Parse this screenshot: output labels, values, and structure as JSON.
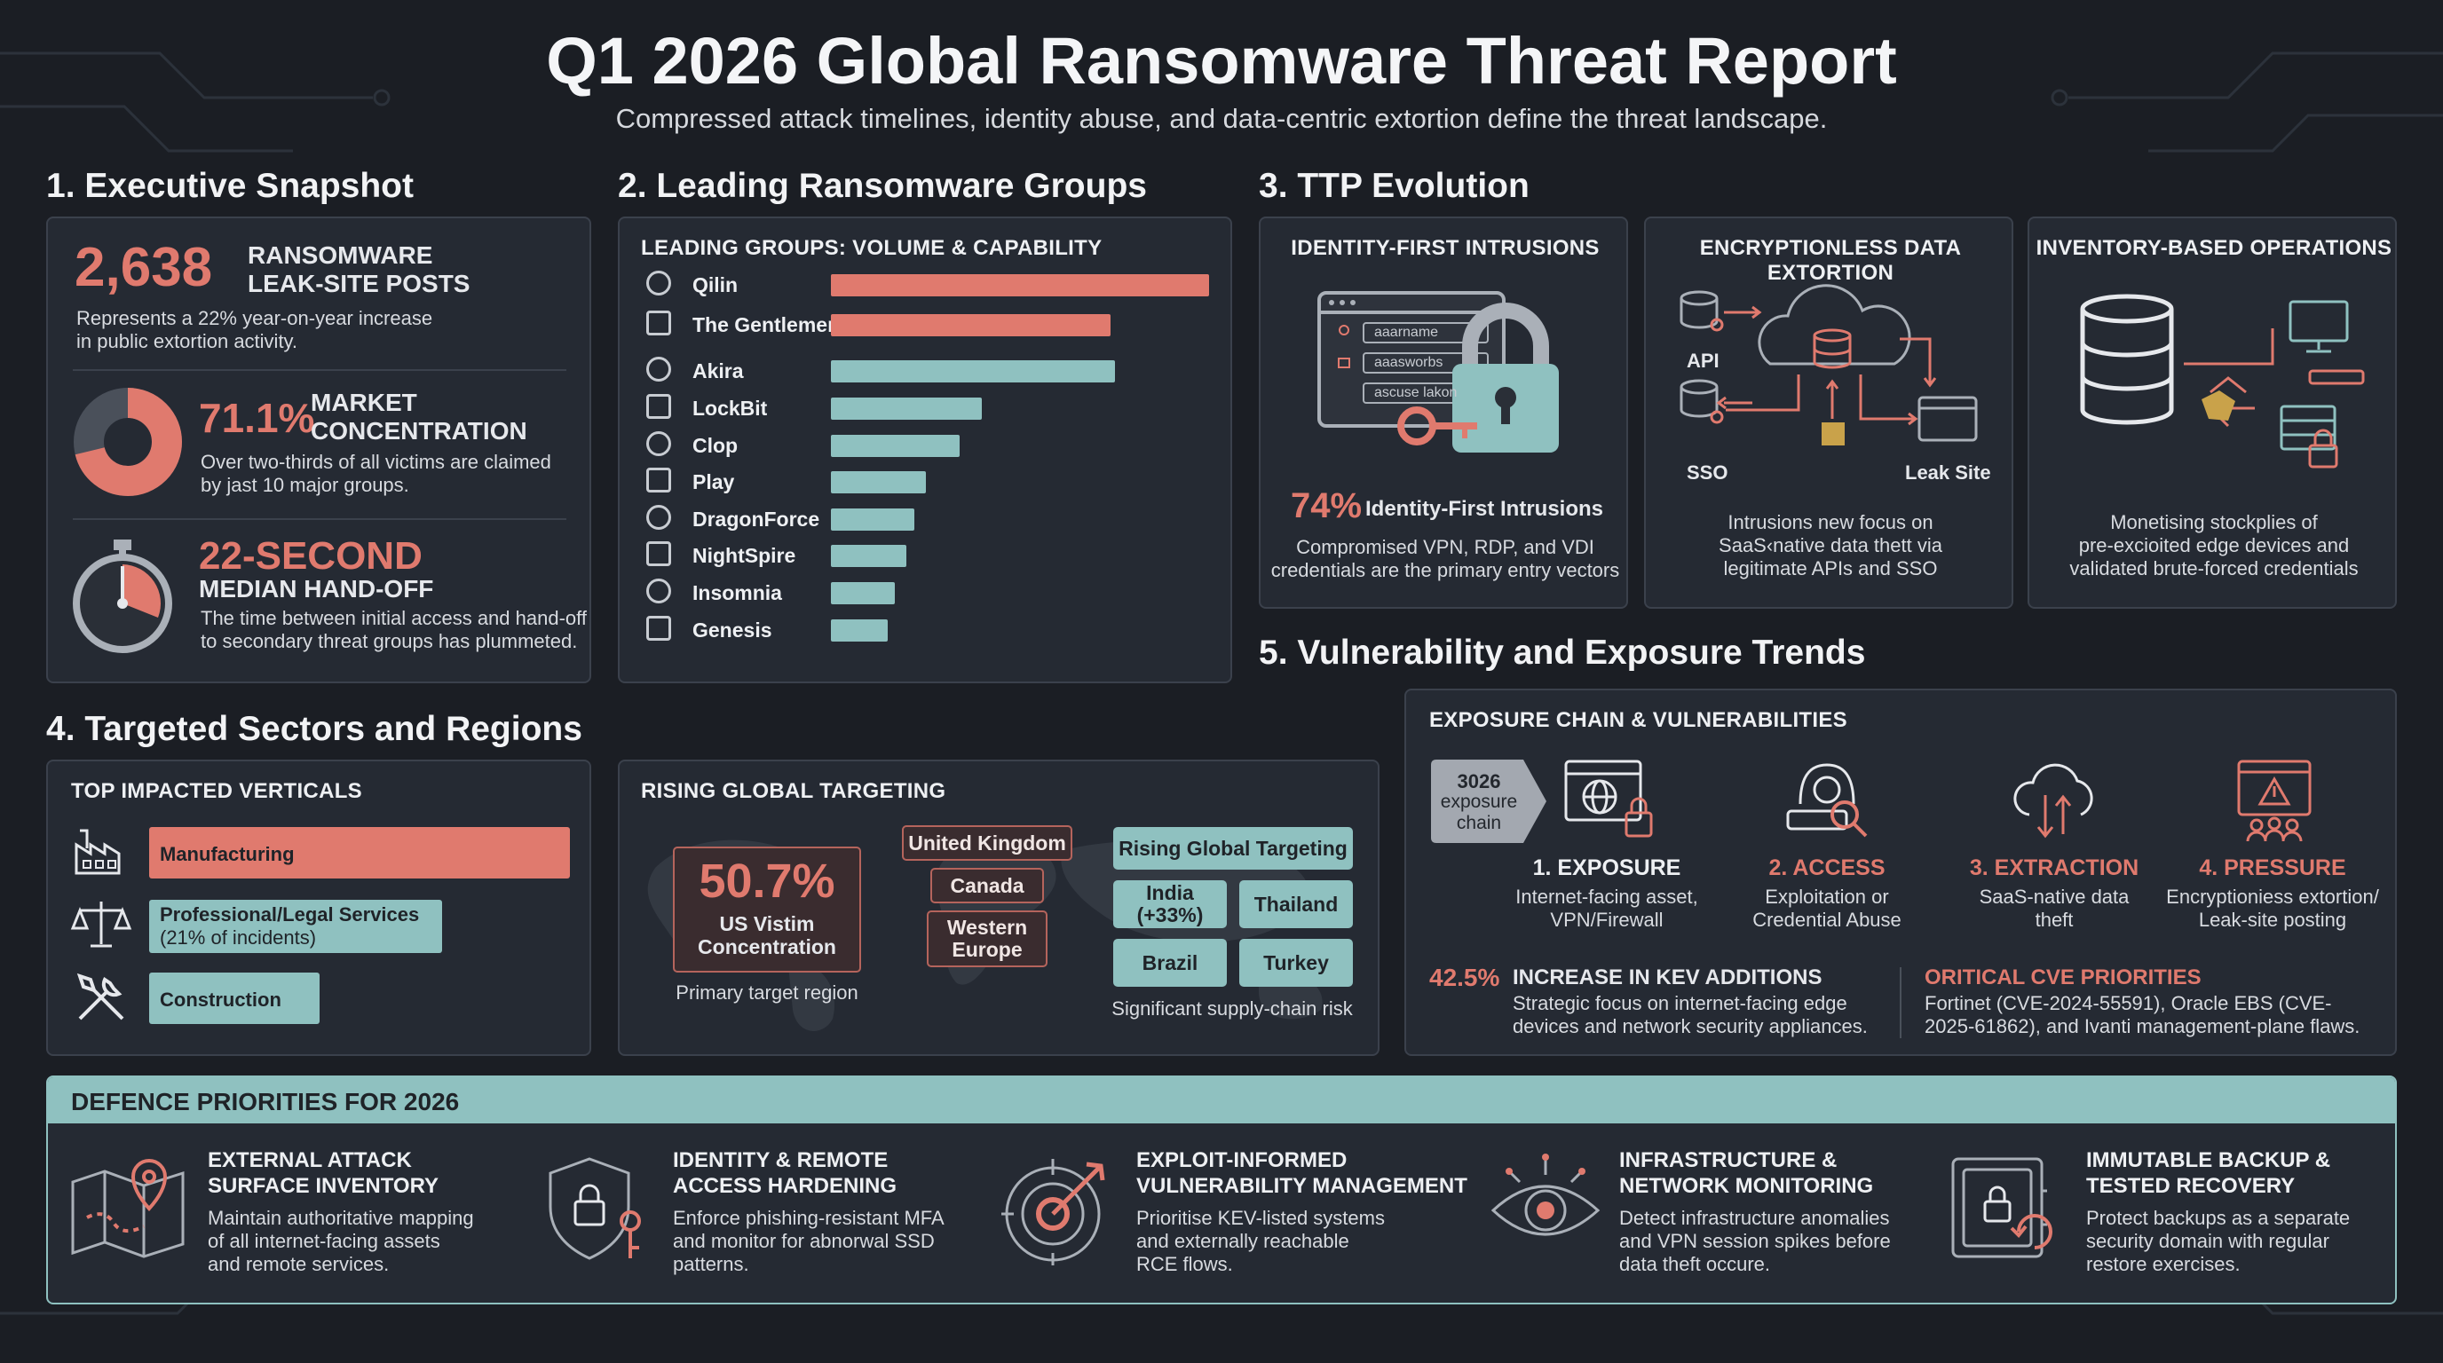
{
  "title": "Q1 2026 Global Ransomware Threat Report",
  "subtitle": "Compressed attack timelines, identity abuse, and data-centric extortion define the threat landscape.",
  "colors": {
    "accent_red": "#e07a6e",
    "accent_teal": "#8fc1c0",
    "background": "#1b1e24",
    "panel": "#252a33"
  },
  "snapshot": {
    "heading": "1. Executive Snapshot",
    "posts_value": "2,638",
    "posts_label_1": "RANSOMWARE",
    "posts_label_2": "LEAK-SITE POSTS",
    "posts_desc_1": "Represents a 22% year-on-year increase",
    "posts_desc_2": "in public extortion activity.",
    "market_value": "71.1%",
    "market_fraction": 0.711,
    "market_label_1": "MARKET",
    "market_label_2": "CONCENTRATION",
    "market_desc_1": "Over two-thirds of all victims are claimed",
    "market_desc_2": "by jast 10 major groups.",
    "handoff_value": "22-SECOND",
    "handoff_label": "MEDIAN HAND-OFF",
    "handoff_desc_1": "The time between initial access and hand-off",
    "handoff_desc_2": "to secondary threat groups has plummeted."
  },
  "groups": {
    "heading": "2. Leading Ransomware Groups",
    "caption": "LEADING GROUPS: VOLUME & CAPABILITY",
    "items": [
      {
        "name": "Qilin",
        "value": 100,
        "color": "#e07a6e",
        "icon": "qilin-icon"
      },
      {
        "name": "The Gentlemen",
        "value": 74,
        "color": "#e07a6e",
        "icon": "gentlemen-icon"
      },
      {
        "name": "Akira",
        "value": 75,
        "color": "#8fc1c0",
        "icon": "akira-icon"
      },
      {
        "name": "LockBit",
        "value": 40,
        "color": "#8fc1c0",
        "icon": "lockbit-icon"
      },
      {
        "name": "Clop",
        "value": 34,
        "color": "#8fc1c0",
        "icon": "clop-icon"
      },
      {
        "name": "Play",
        "value": 25,
        "color": "#8fc1c0",
        "icon": "play-icon"
      },
      {
        "name": "DragonForce",
        "value": 22,
        "color": "#8fc1c0",
        "icon": "dragonforce-icon"
      },
      {
        "name": "NightSpire",
        "value": 20,
        "color": "#8fc1c0",
        "icon": "nightspire-icon"
      },
      {
        "name": "Insomnia",
        "value": 17,
        "color": "#8fc1c0",
        "icon": "insomnia-icon"
      },
      {
        "name": "Genesis",
        "value": 15,
        "color": "#8fc1c0",
        "icon": "genesis-icon"
      }
    ]
  },
  "ttp": {
    "heading": "3. TTP Evolution",
    "identity": {
      "caption": "IDENTITY-FIRST INTRUSIONS",
      "field_1": "aaarname",
      "field_2": "aaasworbs",
      "field_3": "ascuse lakon",
      "value": "74%",
      "label": "Identity-First Intrusions",
      "desc_1": "Compromised VPN, RDP, and VDI",
      "desc_2": "credentials are the primary entry vectors"
    },
    "extortion": {
      "caption": "ENCRYPTIONLESS DATA EXTORTION",
      "api_label": "API",
      "sso_label": "SSO",
      "leak_label": "Leak Site",
      "desc_1": "Intrusions new focus on",
      "desc_2": "SaaS‹native data thett via",
      "desc_3": "legitimate APIs and SSO"
    },
    "inventory": {
      "caption": "INVENTORY-BASED OPERATIONS",
      "desc_1": "Monetising stockplies of",
      "desc_2": "pre-excioited edge devices and",
      "desc_3": "validated brute-forced credentials"
    }
  },
  "sectors": {
    "heading": "4. Targeted Sectors and Regions",
    "verticals_caption": "TOP IMPACTED VERTICALS",
    "verticals": [
      {
        "label": "Manufacturing",
        "color": "#e07a6e",
        "icon": "factory-icon"
      },
      {
        "label": "Professional/Legal Services",
        "sub": "(21% of incidents)",
        "color": "#8fc1c0",
        "icon": "scales-icon"
      },
      {
        "label": "Construction",
        "color": "#8fc1c0",
        "icon": "tools-icon"
      }
    ],
    "regions_caption": "RISING GLOBAL TARGETING",
    "us_value": "50.7%",
    "us_label_1": "US Vistim",
    "us_label_2": "Concentration",
    "us_note": "Primary target region",
    "region_uk": "United Kingdom",
    "region_canada": "Canada",
    "region_we_1": "Western",
    "region_we_2": "Europe",
    "rising_header": "Rising Global Targeting",
    "rising_india_1": "India",
    "rising_india_2": "(+33%)",
    "rising_thailand": "Thailand",
    "rising_brazil": "Brazil",
    "rising_turkey": "Turkey",
    "rising_note": "Significant supply-chain risk"
  },
  "vuln": {
    "heading": "5. Vulnerability and Exposure Trends",
    "caption": "EXPOSURE CHAIN & VULNERABILITIES",
    "chain_1": "3026",
    "chain_2": "exposure",
    "chain_3": "chain",
    "steps": [
      {
        "title": "1. EXPOSURE",
        "d1": "Internet-facing asset,",
        "d2": "VPN/Firewall",
        "color": "#eef0f3"
      },
      {
        "title": "2. ACCESS",
        "d1": "Exploitation or",
        "d2": "Credential Abuse",
        "color": "#e07a6e"
      },
      {
        "title": "3. EXTRACTION",
        "d1": "SaaS-native data",
        "d2": "theft",
        "color": "#e07a6e"
      },
      {
        "title": "4. PRESSURE",
        "d1": "Encryptioniess extortion/",
        "d2": "Leak-site posting",
        "color": "#e07a6e"
      }
    ],
    "kev_value": "42.5%",
    "kev_title": "INCREASE IN KEV ADDITIONS",
    "kev_desc_1": "Strategic focus on internet-facing edge",
    "kev_desc_2": "devices and network security appliances.",
    "cve_title": "ORITICAL CVE PRIORITIES",
    "cve_desc_1": "Fortinet (CVE-2024-55591), Oracle EBS (CVE-",
    "cve_desc_2": "2025-61862), and Ivanti management-plane flaws."
  },
  "defence": {
    "heading": "DEFENCE PRIORITIES FOR 2026",
    "items": [
      {
        "t1": "EXTERNAL ATTACK",
        "t2": "SURFACE INVENTORY",
        "d1": "Maintain authoritative mapping",
        "d2": "of all internet-facing assets",
        "d3": "and remote services.",
        "icon": "map-pin-icon"
      },
      {
        "t1": "IDENTITY & REMOTE",
        "t2": "ACCESS HARDENING",
        "d1": "Enforce phishing-resistant MFA",
        "d2": "and monitor for abnorwal SSD",
        "d3": "patterns.",
        "icon": "shield-key-icon"
      },
      {
        "t1": "EXPLOIT-INFORMED",
        "t2": "VULNERABILITY MANAGEMENT",
        "d1": "Prioritise KEV-listed systems",
        "d2": "and externally reachable",
        "d3": "RCE flows.",
        "icon": "target-icon"
      },
      {
        "t1": "INFRASTRUCTURE &",
        "t2": "NETWORK MONITORING",
        "d1": "Detect infrastructure anomalies",
        "d2": "and VPN session spikes before",
        "d3": "data theft occure.",
        "icon": "eye-icon"
      },
      {
        "t1": "IMMUTABLE BACKUP &",
        "t2": "TESTED RECOVERY",
        "d1": "Protect backups as a separate",
        "d2": "security domain with regular",
        "d3": "restore exercises.",
        "icon": "safe-icon"
      }
    ]
  }
}
